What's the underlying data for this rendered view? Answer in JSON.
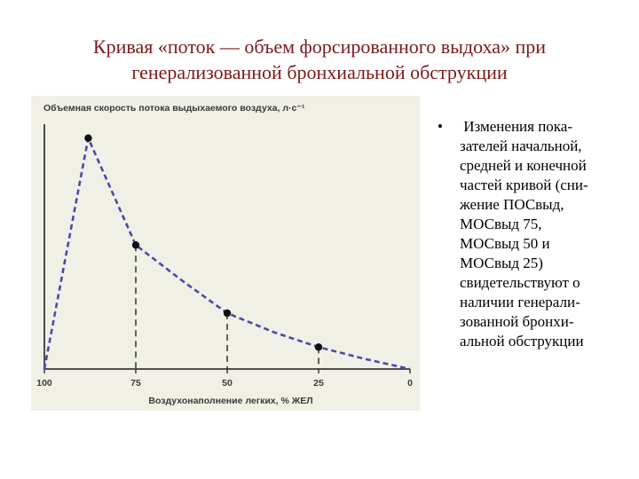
{
  "title": {
    "lines": [
      "Кривая «поток — объем форсированного выдоха» при",
      "генерализованной бронхиальной обструкции"
    ]
  },
  "bullet": {
    "marker": "•",
    "lines": [
      " Изменения пока-",
      "зателей начальной,",
      "средней и конечной",
      "частей кривой (сни-",
      "жение ПОСвыд,",
      "МОСвыд 75,",
      "МОСвыд 50 и",
      "МОСвыд 25)",
      "свидетельствуют о",
      "наличии генерали-",
      "зованной бронхи-",
      "альной обструкции"
    ]
  },
  "chart_data": {
    "type": "line",
    "ylabel": "Объемная скорость потока выдыхаемого воздуха, л·с⁻¹",
    "xlabel": "Воздухонаполнение легких, % ЖЕЛ",
    "x_ticks": [
      "100",
      "75",
      "50",
      "25",
      "0"
    ],
    "xlim": [
      100,
      0
    ],
    "ylim": [
      0,
      1
    ],
    "series_color": "#4a4aa8",
    "curve": [
      {
        "x": 100,
        "y": 0.0
      },
      {
        "x": 88,
        "y": 0.95
      },
      {
        "x": 75,
        "y": 0.51
      },
      {
        "x": 62,
        "y": 0.36
      },
      {
        "x": 50,
        "y": 0.23
      },
      {
        "x": 37,
        "y": 0.15
      },
      {
        "x": 25,
        "y": 0.09
      },
      {
        "x": 12,
        "y": 0.04
      },
      {
        "x": 0,
        "y": 0.0
      }
    ],
    "markers": [
      {
        "x": 88,
        "y": 0.95
      },
      {
        "x": 75,
        "y": 0.51
      },
      {
        "x": 50,
        "y": 0.23
      },
      {
        "x": 25,
        "y": 0.09
      }
    ],
    "drop_lines_at": [
      75,
      50,
      25
    ]
  }
}
